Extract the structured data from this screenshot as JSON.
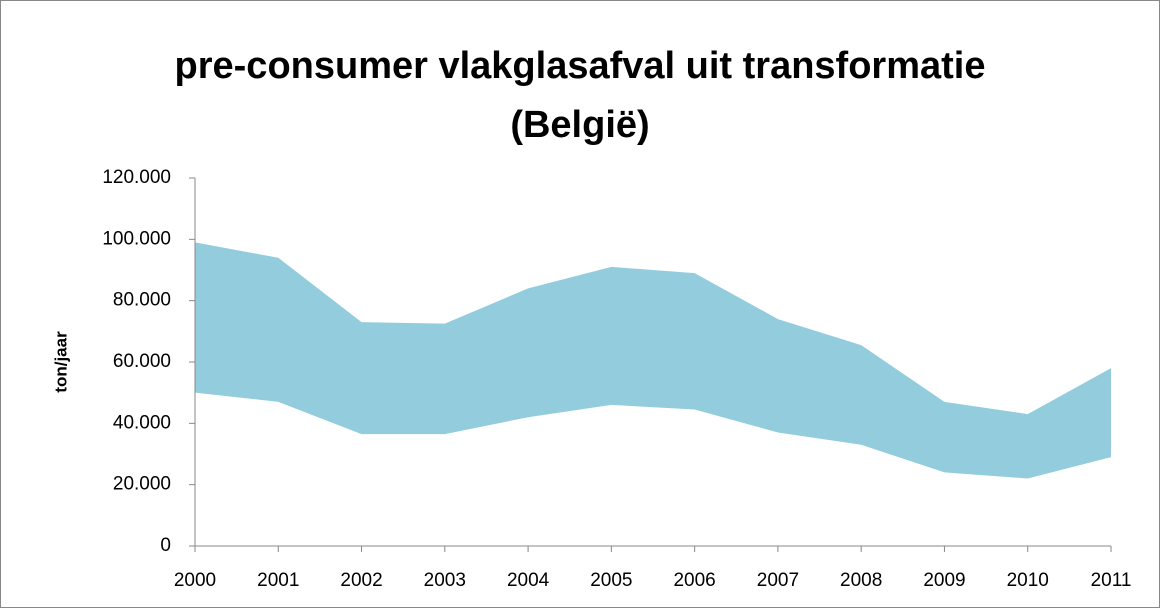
{
  "chart_data": {
    "type": "range-area",
    "title": [
      "pre-consumer vlakglasafval uit transformatie",
      "(België)"
    ],
    "y_label": "ton/jaar",
    "categories": [
      "2000",
      "2001",
      "2002",
      "2003",
      "2004",
      "2005",
      "2006",
      "2007",
      "2008",
      "2009",
      "2010",
      "2011"
    ],
    "series": [
      {
        "color": "#93cddd",
        "values": [
          50000,
          47000,
          36500,
          36500,
          42000,
          46000,
          44500,
          37000,
          33000,
          24000,
          22000,
          29000
        ]
      },
      {
        "color": "#93cddd",
        "values": [
          99000,
          94000,
          73000,
          72500,
          84000,
          91000,
          89000,
          74000,
          65500,
          47000,
          43000,
          58000
        ]
      }
    ],
    "ylim": [
      0,
      120000
    ],
    "yticks": [
      0,
      {
        "value": 20000,
        "label": "20.000"
      },
      {
        "value": 40000,
        "label": "40.000"
      },
      {
        "value": 60000,
        "label": "60.000"
      },
      {
        "value": 80000,
        "label": "80.000"
      },
      {
        "value": 100000,
        "label": "100.000"
      },
      {
        "value": 120000,
        "label": "120.000"
      }
    ],
    "grid": false
  }
}
